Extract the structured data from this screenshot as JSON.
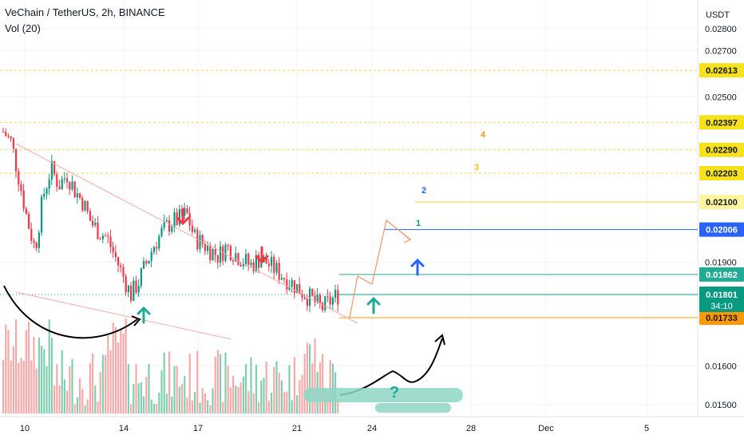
{
  "header": {
    "title": "VeChain / TetherUS, 2h, BINANCE",
    "indicator": "Vol (20)",
    "currency": "USDT"
  },
  "axis": {
    "price_ticks": [
      "0.02800",
      "0.02700",
      "0.02500",
      "0.01900",
      "0.01600",
      "0.01500"
    ],
    "time_ticks": [
      "10",
      "14",
      "17",
      "21",
      "24",
      "28",
      "Dec",
      "5"
    ]
  },
  "levels": [
    {
      "price": "0.02613",
      "color": "#f5e21b",
      "text_color": "#131722",
      "line": "#f5d742"
    },
    {
      "price": "0.02397",
      "color": "#f5e21b",
      "text_color": "#131722",
      "line": "#f5d742"
    },
    {
      "price": "0.02290",
      "color": "#f5e21b",
      "text_color": "#131722",
      "line": "#f5d742"
    },
    {
      "price": "0.02203",
      "color": "#f5e21b",
      "text_color": "#131722",
      "line": "#f5d742"
    },
    {
      "price": "0.02100",
      "color": "#fff59d",
      "text_color": "#131722",
      "line": "#f5d742"
    },
    {
      "price": "0.02006",
      "color": "#2962ff",
      "text_color": "#ffffff",
      "line": "#2962ff"
    },
    {
      "price": "0.01862",
      "color": "#22ab94",
      "text_color": "#ffffff",
      "line": "#22ab94"
    },
    {
      "price": "0.01801",
      "color": "#089981",
      "text_color": "#ffffff",
      "line": "#089981"
    },
    {
      "price": "0.01733",
      "color": "#ff9800",
      "text_color": "#131722",
      "line": "#ff9800"
    }
  ],
  "current_price": {
    "price": "0.01801",
    "countdown": "34:10"
  },
  "targets": [
    {
      "label": "1",
      "color": "#089981"
    },
    {
      "label": "2",
      "color": "#2962ff"
    },
    {
      "label": "3",
      "color": "#f5c518"
    },
    {
      "label": "4",
      "color": "#ff9800"
    }
  ],
  "annotation": {
    "question": "?"
  },
  "colors": {
    "up": "#089981",
    "down": "#f23645",
    "vol_up": "#7fcfb1",
    "vol_down": "#f7a9a9",
    "bg": "#ffffff",
    "grid": "#f0f3fa"
  },
  "chart_data": {
    "type": "candlestick",
    "title": "VeChain / TetherUS, 2h, BINANCE",
    "ylim": [
      0.0147,
      0.0283
    ],
    "y_scale": "log",
    "x_ticks": [
      "10",
      "14",
      "17",
      "21",
      "24",
      "28",
      "Dec",
      "5"
    ],
    "y_ticks": [
      "0.02800",
      "0.02700",
      "0.02500",
      "0.01900",
      "0.01600",
      "0.01500"
    ],
    "close_path": [
      0.0236,
      0.0232,
      0.0218,
      0.0204,
      0.0194,
      0.0212,
      0.0222,
      0.0216,
      0.022,
      0.0214,
      0.021,
      0.0203,
      0.02,
      0.0198,
      0.0192,
      0.0186,
      0.018,
      0.0184,
      0.019,
      0.0196,
      0.02,
      0.0203,
      0.0204,
      0.0206,
      0.0198,
      0.0196,
      0.0194,
      0.0192,
      0.0195,
      0.0193,
      0.0191,
      0.0189,
      0.0191,
      0.019,
      0.0188,
      0.0186,
      0.0184,
      0.0182,
      0.018,
      0.0178,
      0.0176,
      0.0178,
      0.018
    ],
    "volume_label": "Vol (20)",
    "last_price": 0.01801
  }
}
